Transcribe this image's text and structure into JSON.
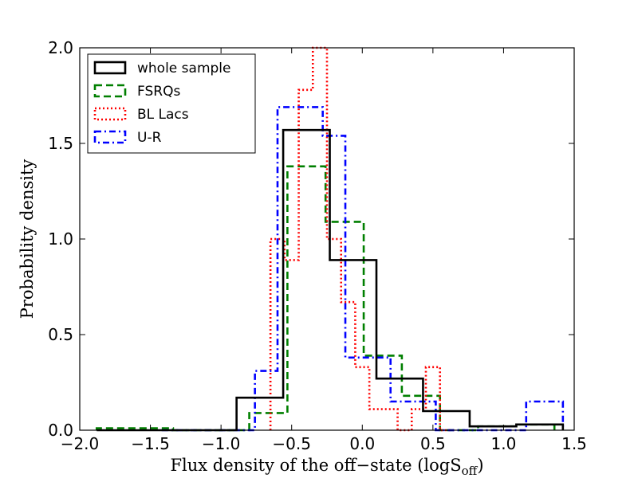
{
  "chart_data": {
    "type": "histogram",
    "title": "",
    "xlabel": "Flux density of the off−state (logS",
    "xlabel_sub": "off",
    "ylabel": "Probability density",
    "xlim": [
      -2.0,
      1.5
    ],
    "ylim": [
      0.0,
      2.0
    ],
    "xticks": [
      -2.0,
      -1.5,
      -1.0,
      -0.5,
      0.0,
      0.5,
      1.0,
      1.5
    ],
    "xtick_labels": [
      "−2.0",
      "−1.5",
      "−1.0",
      "−0.5",
      "0.0",
      "0.5",
      "1.0",
      "1.5"
    ],
    "yticks": [
      0.0,
      0.5,
      1.0,
      1.5,
      2.0
    ],
    "ytick_labels": [
      "0.0",
      "0.5",
      "1.0",
      "1.5",
      "2.0"
    ],
    "legend_position": "top-left",
    "series": [
      {
        "name": "whole sample",
        "color": "#000000",
        "style": "solid",
        "edges": [
          -1.88,
          -1.55,
          -1.22,
          -0.89,
          -0.56,
          -0.23,
          0.1,
          0.43,
          0.76,
          1.09,
          1.42
        ],
        "values": [
          0.0,
          0.0,
          0.0,
          0.17,
          1.57,
          0.89,
          0.27,
          0.1,
          0.02,
          0.03
        ]
      },
      {
        "name": "FSRQs",
        "color": "#007f00",
        "style": "dashed",
        "edges": [
          -1.88,
          -1.61,
          -1.34,
          -1.07,
          -0.8,
          -0.53,
          -0.26,
          0.01,
          0.28,
          0.55,
          0.82,
          1.09,
          1.36
        ],
        "values": [
          0.01,
          0.01,
          0.0,
          0.0,
          0.09,
          1.38,
          1.09,
          0.39,
          0.18,
          0.0,
          0.02,
          0.03
        ]
      },
      {
        "name": "BL Lacs",
        "color": "#ff0000",
        "style": "dotted",
        "edges": [
          -0.65,
          -0.55,
          -0.45,
          -0.35,
          -0.25,
          -0.15,
          -0.05,
          0.05,
          0.15,
          0.25,
          0.35,
          0.45,
          0.55,
          0.65
        ],
        "values": [
          1.0,
          0.89,
          1.78,
          2.0,
          1.0,
          0.67,
          0.33,
          0.11,
          0.11,
          0.0,
          0.11,
          0.33,
          0.0
        ]
      },
      {
        "name": "U-R",
        "color": "#0000ff",
        "style": "dashdot",
        "edges": [
          -1.42,
          -1.09,
          -0.76,
          -0.6,
          -0.44,
          -0.28,
          -0.12,
          0.04,
          0.2,
          0.36,
          0.52,
          0.68,
          0.84,
          1.0,
          1.16,
          1.42
        ],
        "values": [
          0.0,
          0.0,
          0.31,
          1.69,
          1.69,
          1.54,
          0.38,
          0.38,
          0.15,
          0.15,
          0.0,
          0.0,
          0.0,
          0.0,
          0.15
        ]
      }
    ]
  }
}
